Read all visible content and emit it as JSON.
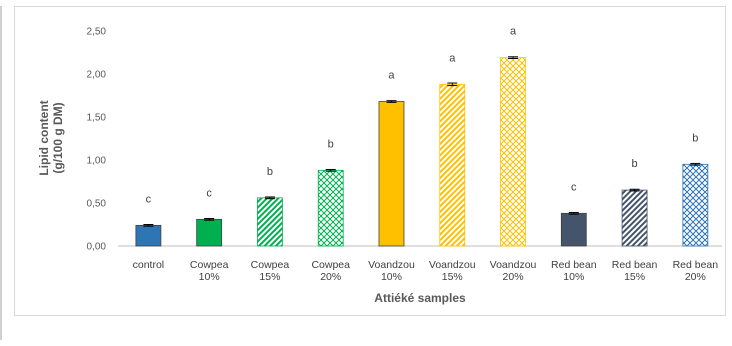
{
  "chart_data": {
    "type": "bar",
    "xlabel": "Attiéké samples",
    "ylabel_lines": [
      "Lipid content",
      "(g/100 g DM)"
    ],
    "ylim": [
      0,
      2.5
    ],
    "yticks": [
      "0,00",
      "0,50",
      "1,00",
      "1,50",
      "2,00",
      "2,50"
    ],
    "grid": false,
    "categories": [
      [
        "control"
      ],
      [
        "Cowpea",
        "10%"
      ],
      [
        "Cowpea",
        "15%"
      ],
      [
        "Cowpea",
        "20%"
      ],
      [
        "Voandzou",
        "10%"
      ],
      [
        "Voandzou",
        "15%"
      ],
      [
        "Voandzou",
        "20%"
      ],
      [
        "Red bean",
        "10%"
      ],
      [
        "Red bean",
        "15%"
      ],
      [
        "Red bean",
        "20%"
      ]
    ],
    "values": [
      0.24,
      0.31,
      0.56,
      0.88,
      1.68,
      1.88,
      2.19,
      0.38,
      0.65,
      0.95
    ],
    "errors": [
      0.01,
      0.01,
      0.01,
      0.01,
      0.01,
      0.015,
      0.01,
      0.01,
      0.01,
      0.01
    ],
    "significance": [
      "c",
      "c",
      "b",
      "b",
      "a",
      "a",
      "a",
      "c",
      "b",
      "b"
    ],
    "bar_styles": [
      {
        "fill": "#2e75b6",
        "pattern": "solid"
      },
      {
        "fill": "#00b050",
        "pattern": "solid"
      },
      {
        "fill": "#00b050",
        "pattern": "diagonal"
      },
      {
        "fill": "#00b050",
        "pattern": "weave"
      },
      {
        "fill": "#ffc000",
        "pattern": "solid"
      },
      {
        "fill": "#ffc000",
        "pattern": "diagonal"
      },
      {
        "fill": "#ffc000",
        "pattern": "weave"
      },
      {
        "fill": "#44546a",
        "pattern": "solid"
      },
      {
        "fill": "#44546a",
        "pattern": "diagonal"
      },
      {
        "fill": "#2e75b6",
        "pattern": "weave"
      }
    ]
  }
}
